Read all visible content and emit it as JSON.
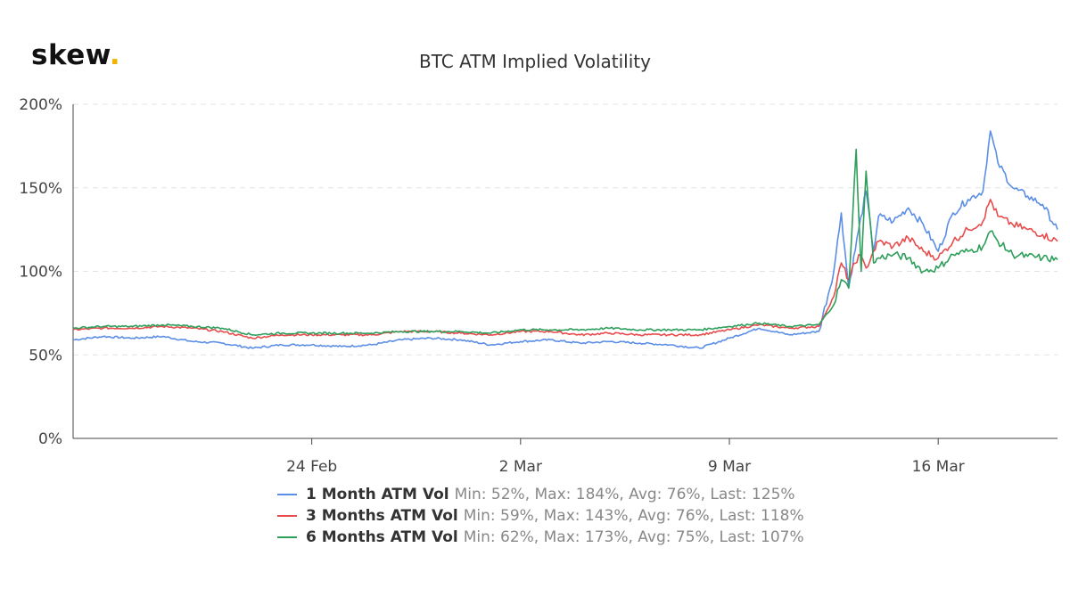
{
  "brand": {
    "name": "skew",
    "dot": "."
  },
  "chart_data": {
    "type": "line",
    "title": "BTC ATM Implied Volatility",
    "xlabel": "",
    "ylabel": "",
    "x_start": "2020-02-16",
    "x_end": "2020-03-20",
    "x_ticks": [
      {
        "label": "24 Feb",
        "date": "2020-02-24"
      },
      {
        "label": "2 Mar",
        "date": "2020-03-02"
      },
      {
        "label": "9 Mar",
        "date": "2020-03-09"
      },
      {
        "label": "16 Mar",
        "date": "2020-03-16"
      }
    ],
    "ylim": [
      0,
      200
    ],
    "y_ticks": [
      0,
      50,
      100,
      150,
      200
    ],
    "y_tick_labels": [
      "0%",
      "50%",
      "100%",
      "150%",
      "200%"
    ],
    "grid": "horizontal dashed",
    "legend_position": "bottom",
    "series": [
      {
        "name": "1 Month ATM Vol",
        "stats": "Min: 52%, Max: 184%, Avg: 76%, Last: 125%",
        "color": "#5b8ee6",
        "points": [
          [
            "2020-02-16",
            59
          ],
          [
            "2020-02-17",
            61
          ],
          [
            "2020-02-18",
            60
          ],
          [
            "2020-02-19",
            61
          ],
          [
            "2020-02-20",
            58
          ],
          [
            "2020-02-21",
            57
          ],
          [
            "2020-02-22",
            54
          ],
          [
            "2020-02-23",
            56
          ],
          [
            "2020-02-24",
            56
          ],
          [
            "2020-02-25",
            55
          ],
          [
            "2020-02-26",
            56
          ],
          [
            "2020-02-27",
            59
          ],
          [
            "2020-02-28",
            60
          ],
          [
            "2020-02-29",
            59
          ],
          [
            "2020-03-01",
            56
          ],
          [
            "2020-03-02",
            58
          ],
          [
            "2020-03-03",
            59
          ],
          [
            "2020-03-04",
            57
          ],
          [
            "2020-03-05",
            58
          ],
          [
            "2020-03-06",
            57
          ],
          [
            "2020-03-07",
            56
          ],
          [
            "2020-03-08",
            54
          ],
          [
            "2020-03-09",
            60
          ],
          [
            "2020-03-10",
            66
          ],
          [
            "2020-03-11",
            62
          ],
          [
            "2020-03-12",
            64
          ],
          [
            "2020-03-12T12:00",
            100
          ],
          [
            "2020-03-12T18:00",
            135
          ],
          [
            "2020-03-13",
            90
          ],
          [
            "2020-03-13T08:00",
            125
          ],
          [
            "2020-03-13T14:00",
            148
          ],
          [
            "2020-03-13T20:00",
            112
          ],
          [
            "2020-03-14",
            133
          ],
          [
            "2020-03-14T12:00",
            130
          ],
          [
            "2020-03-15",
            138
          ],
          [
            "2020-03-15T12:00",
            128
          ],
          [
            "2020-03-16",
            112
          ],
          [
            "2020-03-16T12:00",
            135
          ],
          [
            "2020-03-17",
            143
          ],
          [
            "2020-03-17T12:00",
            148
          ],
          [
            "2020-03-17T18:00",
            184
          ],
          [
            "2020-03-18",
            165
          ],
          [
            "2020-03-18T12:00",
            150
          ],
          [
            "2020-03-19",
            145
          ],
          [
            "2020-03-19T12:00",
            140
          ],
          [
            "2020-03-20",
            125
          ]
        ]
      },
      {
        "name": "3 Months ATM Vol",
        "stats": "Min: 59%, Max: 143%, Avg: 76%, Last: 118%",
        "color": "#e84c4c",
        "points": [
          [
            "2020-02-16",
            65
          ],
          [
            "2020-02-17",
            66
          ],
          [
            "2020-02-18",
            66
          ],
          [
            "2020-02-19",
            67
          ],
          [
            "2020-02-20",
            66
          ],
          [
            "2020-02-21",
            64
          ],
          [
            "2020-02-22",
            60
          ],
          [
            "2020-02-23",
            62
          ],
          [
            "2020-02-24",
            62
          ],
          [
            "2020-02-25",
            62
          ],
          [
            "2020-02-26",
            62
          ],
          [
            "2020-02-27",
            64
          ],
          [
            "2020-02-28",
            64
          ],
          [
            "2020-02-29",
            63
          ],
          [
            "2020-03-01",
            62
          ],
          [
            "2020-03-02",
            64
          ],
          [
            "2020-03-03",
            64
          ],
          [
            "2020-03-04",
            62
          ],
          [
            "2020-03-05",
            63
          ],
          [
            "2020-03-06",
            62
          ],
          [
            "2020-03-07",
            62
          ],
          [
            "2020-03-08",
            62
          ],
          [
            "2020-03-09",
            65
          ],
          [
            "2020-03-10",
            68
          ],
          [
            "2020-03-11",
            66
          ],
          [
            "2020-03-12",
            67
          ],
          [
            "2020-03-12T12:00",
            85
          ],
          [
            "2020-03-12T18:00",
            105
          ],
          [
            "2020-03-13",
            95
          ],
          [
            "2020-03-13T08:00",
            110
          ],
          [
            "2020-03-13T14:00",
            102
          ],
          [
            "2020-03-13T20:00",
            112
          ],
          [
            "2020-03-14",
            118
          ],
          [
            "2020-03-14T12:00",
            115
          ],
          [
            "2020-03-15",
            120
          ],
          [
            "2020-03-15T12:00",
            112
          ],
          [
            "2020-03-16",
            108
          ],
          [
            "2020-03-16T12:00",
            118
          ],
          [
            "2020-03-17",
            125
          ],
          [
            "2020-03-17T12:00",
            130
          ],
          [
            "2020-03-17T18:00",
            143
          ],
          [
            "2020-03-18",
            133
          ],
          [
            "2020-03-18T12:00",
            128
          ],
          [
            "2020-03-19",
            125
          ],
          [
            "2020-03-19T12:00",
            122
          ],
          [
            "2020-03-20",
            118
          ]
        ]
      },
      {
        "name": "6 Months ATM Vol",
        "stats": "Min: 62%, Max: 173%, Avg: 75%, Last: 107%",
        "color": "#2e9e5b",
        "points": [
          [
            "2020-02-16",
            66
          ],
          [
            "2020-02-17",
            67
          ],
          [
            "2020-02-18",
            67
          ],
          [
            "2020-02-19",
            68
          ],
          [
            "2020-02-20",
            67
          ],
          [
            "2020-02-21",
            66
          ],
          [
            "2020-02-22",
            62
          ],
          [
            "2020-02-23",
            63
          ],
          [
            "2020-02-24",
            63
          ],
          [
            "2020-02-25",
            63
          ],
          [
            "2020-02-26",
            63
          ],
          [
            "2020-02-27",
            64
          ],
          [
            "2020-02-28",
            64
          ],
          [
            "2020-02-29",
            64
          ],
          [
            "2020-03-01",
            63
          ],
          [
            "2020-03-02",
            65
          ],
          [
            "2020-03-03",
            65
          ],
          [
            "2020-03-04",
            65
          ],
          [
            "2020-03-05",
            66
          ],
          [
            "2020-03-06",
            65
          ],
          [
            "2020-03-07",
            65
          ],
          [
            "2020-03-08",
            65
          ],
          [
            "2020-03-09",
            67
          ],
          [
            "2020-03-10",
            69
          ],
          [
            "2020-03-11",
            67
          ],
          [
            "2020-03-12",
            68
          ],
          [
            "2020-03-12T12:00",
            80
          ],
          [
            "2020-03-12T18:00",
            95
          ],
          [
            "2020-03-13",
            90
          ],
          [
            "2020-03-13T06:00",
            173
          ],
          [
            "2020-03-13T10:00",
            100
          ],
          [
            "2020-03-13T14:00",
            160
          ],
          [
            "2020-03-13T20:00",
            105
          ],
          [
            "2020-03-14",
            108
          ],
          [
            "2020-03-14T12:00",
            110
          ],
          [
            "2020-03-15",
            108
          ],
          [
            "2020-03-15T12:00",
            100
          ],
          [
            "2020-03-16",
            102
          ],
          [
            "2020-03-16T12:00",
            110
          ],
          [
            "2020-03-17",
            112
          ],
          [
            "2020-03-17T12:00",
            115
          ],
          [
            "2020-03-17T18:00",
            124
          ],
          [
            "2020-03-18",
            118
          ],
          [
            "2020-03-18T12:00",
            110
          ],
          [
            "2020-03-19",
            109
          ],
          [
            "2020-03-19T12:00",
            108
          ],
          [
            "2020-03-20",
            107
          ]
        ]
      }
    ]
  }
}
